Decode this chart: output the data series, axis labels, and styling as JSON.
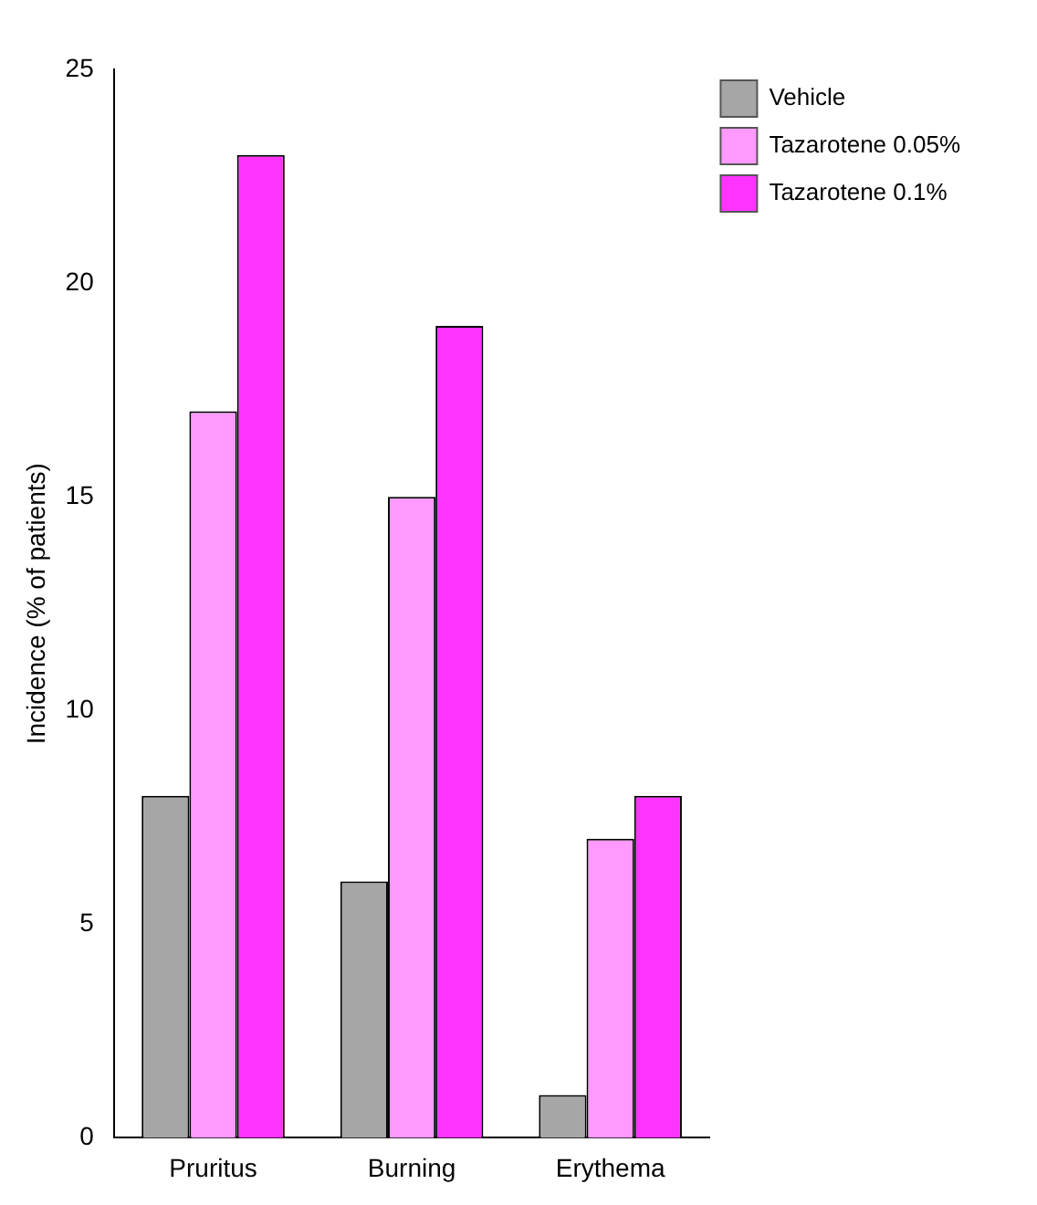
{
  "chart_data": {
    "type": "bar",
    "ylabel": "Incidence (% of patients)",
    "categories": [
      "Pruritus",
      "Burning",
      "Erythema"
    ],
    "series": [
      {
        "name": "Vehicle",
        "color": "#a6a6a6",
        "values": [
          8,
          6,
          1
        ]
      },
      {
        "name": "Tazarotene 0.05%",
        "color": "#ff99ff",
        "values": [
          17,
          15,
          7
        ]
      },
      {
        "name": "Tazarotene 0.1%",
        "color": "#ff33ff",
        "values": [
          23,
          19,
          8
        ]
      }
    ],
    "ylim": [
      0,
      25
    ],
    "yticks": [
      0,
      5,
      10,
      15,
      20,
      25
    ],
    "grid": false,
    "legend": "top right"
  }
}
